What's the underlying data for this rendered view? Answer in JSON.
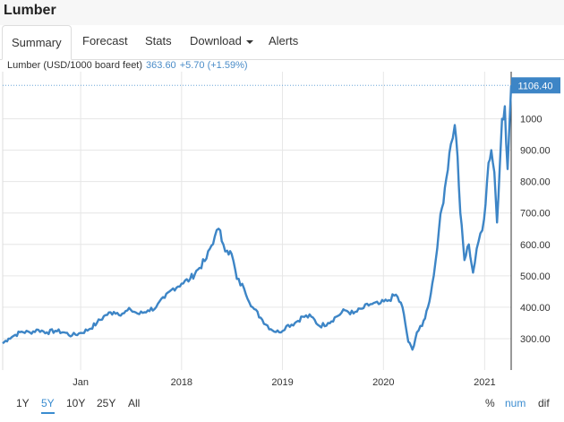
{
  "page": {
    "title": "Lumber"
  },
  "tabs": [
    {
      "label": "Summary",
      "active": true
    },
    {
      "label": "Forecast"
    },
    {
      "label": "Stats"
    },
    {
      "label": "Download"
    },
    {
      "label": "Alerts"
    }
  ],
  "quote": {
    "label": "Lumber (USD/1000 board feet)",
    "price": "363.60",
    "change": "+5.70 (+1.59%)"
  },
  "colors": {
    "line": "#3d85c6",
    "badge": "#3d85c6",
    "selected": "#3a8cd0"
  },
  "range_buttons": [
    {
      "label": "1Y"
    },
    {
      "label": "5Y",
      "selected": true
    },
    {
      "label": "10Y"
    },
    {
      "label": "25Y"
    },
    {
      "label": "All"
    }
  ],
  "modes": [
    {
      "label": "%"
    },
    {
      "label": "num",
      "selected": true
    },
    {
      "label": "dif"
    }
  ],
  "chart_data": {
    "type": "line",
    "ylim": [
      200,
      1150
    ],
    "xlim": [
      "2016-03-25",
      "2021-04-07"
    ],
    "y_ticks": [
      "300.00",
      "400.00",
      "500.00",
      "600.00",
      "700.00",
      "800.00",
      "900.00",
      "1000",
      "1106.40"
    ],
    "x_ticks": [
      "Jan",
      "2018",
      "2019",
      "2020",
      "2021"
    ],
    "last_value_label": "1106.40",
    "series": [
      {
        "points": [
          [
            "2016-03-25",
            285
          ],
          [
            "2016-04-15",
            300
          ],
          [
            "2016-05-10",
            312
          ],
          [
            "2016-06-01",
            322
          ],
          [
            "2016-07-01",
            320
          ],
          [
            "2016-08-01",
            328
          ],
          [
            "2016-09-01",
            320
          ],
          [
            "2016-10-01",
            325
          ],
          [
            "2016-11-01",
            320
          ],
          [
            "2016-12-01",
            310
          ],
          [
            "2017-01-01",
            318
          ],
          [
            "2017-02-01",
            330
          ],
          [
            "2017-03-01",
            350
          ],
          [
            "2017-04-01",
            375
          ],
          [
            "2017-05-01",
            385
          ],
          [
            "2017-06-01",
            380
          ],
          [
            "2017-07-01",
            392
          ],
          [
            "2017-08-01",
            378
          ],
          [
            "2017-09-01",
            390
          ],
          [
            "2017-10-01",
            400
          ],
          [
            "2017-11-01",
            430
          ],
          [
            "2017-12-01",
            460
          ],
          [
            "2018-01-01",
            475
          ],
          [
            "2018-02-01",
            490
          ],
          [
            "2018-03-01",
            520
          ],
          [
            "2018-04-01",
            555
          ],
          [
            "2018-05-01",
            625
          ],
          [
            "2018-05-15",
            650
          ],
          [
            "2018-06-01",
            600
          ],
          [
            "2018-06-15",
            580
          ],
          [
            "2018-07-01",
            570
          ],
          [
            "2018-07-20",
            490
          ],
          [
            "2018-08-15",
            460
          ],
          [
            "2018-09-15",
            400
          ],
          [
            "2018-10-20",
            360
          ],
          [
            "2018-11-20",
            330
          ],
          [
            "2018-12-20",
            320
          ],
          [
            "2019-01-15",
            340
          ],
          [
            "2019-02-15",
            350
          ],
          [
            "2019-03-15",
            370
          ],
          [
            "2019-04-15",
            370
          ],
          [
            "2019-05-15",
            340
          ],
          [
            "2019-06-15",
            350
          ],
          [
            "2019-07-15",
            370
          ],
          [
            "2019-08-15",
            390
          ],
          [
            "2019-09-15",
            380
          ],
          [
            "2019-10-15",
            395
          ],
          [
            "2019-11-15",
            410
          ],
          [
            "2019-12-15",
            410
          ],
          [
            "2020-01-15",
            420
          ],
          [
            "2020-02-15",
            440
          ],
          [
            "2020-03-10",
            400
          ],
          [
            "2020-03-31",
            290
          ],
          [
            "2020-04-15",
            265
          ],
          [
            "2020-05-01",
            320
          ],
          [
            "2020-05-20",
            340
          ],
          [
            "2020-06-10",
            400
          ],
          [
            "2020-07-01",
            500
          ],
          [
            "2020-07-20",
            650
          ],
          [
            "2020-08-10",
            780
          ],
          [
            "2020-09-01",
            920
          ],
          [
            "2020-09-15",
            980
          ],
          [
            "2020-09-25",
            880
          ],
          [
            "2020-10-05",
            700
          ],
          [
            "2020-10-20",
            550
          ],
          [
            "2020-11-05",
            600
          ],
          [
            "2020-11-20",
            510
          ],
          [
            "2020-12-10",
            610
          ],
          [
            "2020-12-30",
            680
          ],
          [
            "2021-01-15",
            860
          ],
          [
            "2021-01-25",
            900
          ],
          [
            "2021-02-05",
            830
          ],
          [
            "2021-02-15",
            670
          ],
          [
            "2021-02-25",
            850
          ],
          [
            "2021-03-05",
            1000
          ],
          [
            "2021-03-15",
            1040
          ],
          [
            "2021-03-25",
            840
          ],
          [
            "2021-04-02",
            1010
          ],
          [
            "2021-04-07",
            1106.4
          ]
        ]
      }
    ]
  }
}
